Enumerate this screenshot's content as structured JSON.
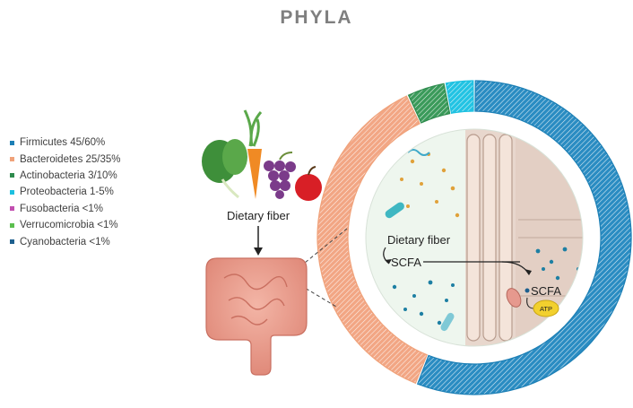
{
  "title": "PHYLA",
  "legend": [
    {
      "label": "Firmicutes 45/60%",
      "color": "#1c7fb5"
    },
    {
      "label": "Bacteroidetes 25/35%",
      "color": "#f0a27a"
    },
    {
      "label": "Actinobacteria 3/10%",
      "color": "#2e8b4d"
    },
    {
      "label": "Proteobacteria 1-5%",
      "color": "#1cc0e0"
    },
    {
      "label": "Fusobacteria <1%",
      "color": "#c24fb0"
    },
    {
      "label": "Verrucomicrobia <1%",
      "color": "#5bbf4f"
    },
    {
      "label": "Cyanobacteria <1%",
      "color": "#1d5f8e"
    }
  ],
  "illustration": {
    "diet_label": "Dietary fiber",
    "inner_fiber_label": "Dietary fiber",
    "scfa_label_left": "SCFA",
    "scfa_label_right": "SCFA",
    "atp_label": "ATP"
  },
  "chart_data": {
    "type": "pie",
    "title": "PHYLA",
    "categories": [
      "Firmicutes",
      "Bacteroidetes",
      "Actinobacteria",
      "Proteobacteria"
    ],
    "values": [
      56,
      37,
      4,
      3
    ],
    "colors": [
      "#1c7fb5",
      "#f0a27a",
      "#2e8b4d",
      "#1cc0e0"
    ]
  }
}
